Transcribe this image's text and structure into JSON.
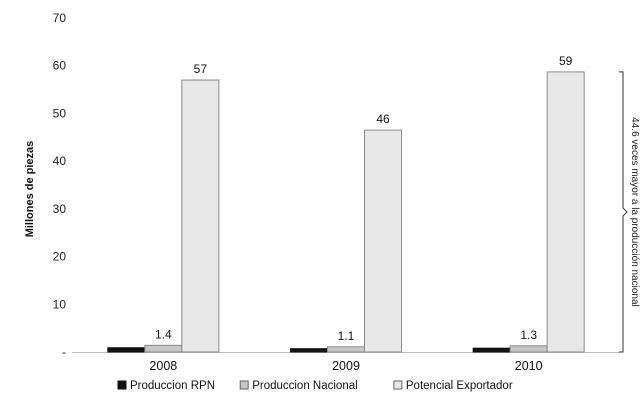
{
  "chart_data": {
    "type": "bar",
    "categories": [
      "2008",
      "2009",
      "2010"
    ],
    "series": [
      {
        "name": "Produccion RPN",
        "values": [
          0.9,
          0.7,
          0.8
        ],
        "color": "#111111"
      },
      {
        "name": "Produccion Nacional",
        "values": [
          1.4,
          1.1,
          1.3
        ],
        "color": "#c7c7c7"
      },
      {
        "name": "Potencial Exportador",
        "values": [
          57,
          46.5,
          58.7
        ],
        "color": "#e8e8e8"
      }
    ],
    "data_labels": [
      {
        "category": "2008",
        "series": "Produccion Nacional",
        "text": "1.4"
      },
      {
        "category": "2008",
        "series": "Potencial Exportador",
        "text": "57"
      },
      {
        "category": "2009",
        "series": "Produccion Nacional",
        "text": "1.1"
      },
      {
        "category": "2009",
        "series": "Potencial Exportador",
        "text": "46"
      },
      {
        "category": "2010",
        "series": "Produccion Nacional",
        "text": "1.3"
      },
      {
        "category": "2010",
        "series": "Potencial Exportador",
        "text": "59"
      }
    ],
    "y_ticks": [
      "-",
      "10",
      "20",
      "30",
      "40",
      "50",
      "60",
      "70"
    ],
    "ylabel": "Millones de piezas",
    "xlabel": "",
    "title": "",
    "ylim": [
      0,
      70
    ],
    "annotation": "44.6 veces mayor a la producción nacional",
    "legend_position": "bottom",
    "grid": false
  }
}
